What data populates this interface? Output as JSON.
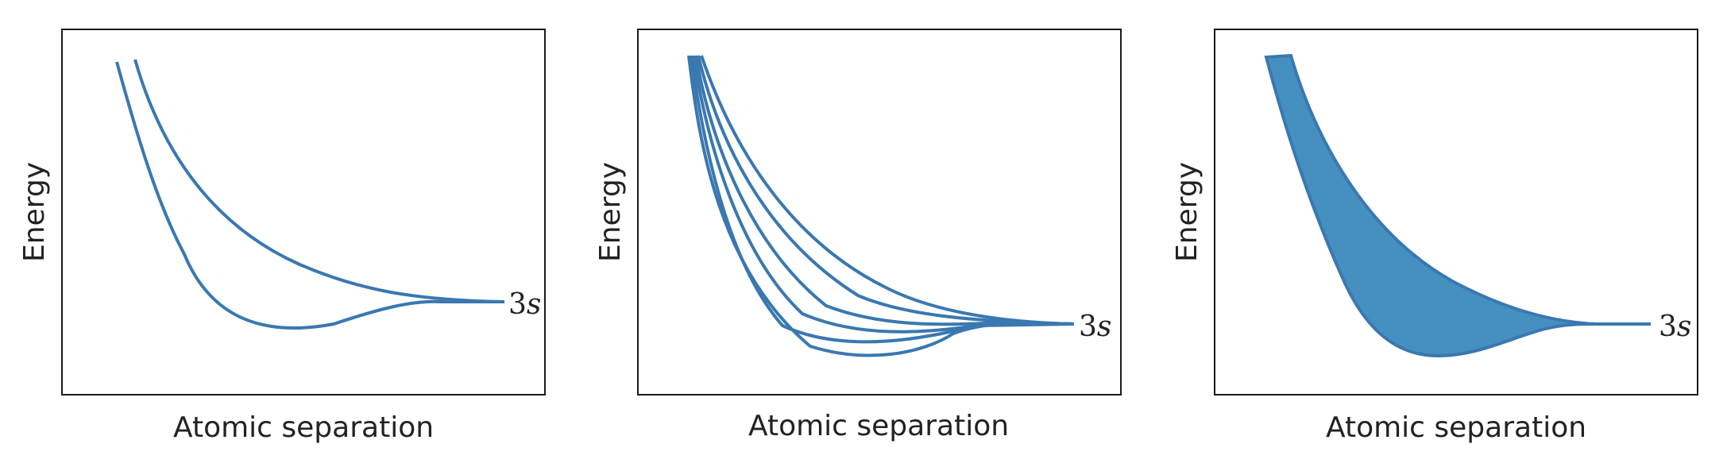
{
  "panels": [
    {
      "xlabel": "Atomic separation",
      "ylabel": "Energy",
      "level_label_num": "3",
      "level_label_orb": "s",
      "style": "two-curves"
    },
    {
      "xlabel": "Atomic separation",
      "ylabel": "Energy",
      "level_label_num": "3",
      "level_label_orb": "s",
      "style": "many-curves"
    },
    {
      "xlabel": "Atomic separation",
      "ylabel": "Energy",
      "level_label_num": "3",
      "level_label_orb": "s",
      "style": "filled-band"
    }
  ],
  "colors": {
    "curve": "#3a78b0",
    "band_fill": "#4590c0",
    "frame": "#1a1a1a"
  }
}
